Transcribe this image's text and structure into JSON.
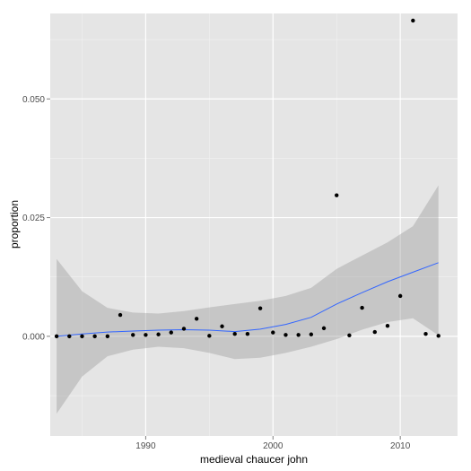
{
  "chart_data": {
    "type": "scatter",
    "title": "",
    "xlabel": "medieval chaucer john",
    "ylabel": "proportion",
    "xlim": [
      1982.5,
      2014.5
    ],
    "ylim": [
      -0.021,
      0.068
    ],
    "x_ticks": [
      1990,
      2000,
      2010
    ],
    "x_tick_labels": [
      "1990",
      "2000",
      "2010"
    ],
    "y_ticks": [
      0,
      0.025,
      0.05
    ],
    "y_tick_labels": [
      "0.000",
      "0.025",
      "0.050"
    ],
    "grid": true,
    "legend": "none",
    "points": {
      "x": [
        1983,
        1984,
        1985,
        1986,
        1987,
        1988,
        1989,
        1990,
        1991,
        1992,
        1993,
        1994,
        1995,
        1996,
        1997,
        1998,
        1999,
        2000,
        2001,
        2002,
        2003,
        2004,
        2005,
        2006,
        2007,
        2008,
        2009,
        2010,
        2011,
        2012,
        2013
      ],
      "y": [
        0.0,
        0.0,
        0.0,
        0.0,
        0.0,
        0.0045,
        0.0003,
        0.0003,
        0.0004,
        0.0008,
        0.0016,
        0.0037,
        0.0001,
        0.0021,
        0.0005,
        0.0005,
        0.0059,
        0.0008,
        0.0003,
        0.0003,
        0.0004,
        0.0017,
        0.0297,
        0.0002,
        0.006,
        0.0009,
        0.0022,
        0.0085,
        0.0665,
        0.0005,
        0.0001
      ]
    },
    "smooth": {
      "x": [
        1983,
        1985,
        1987,
        1989,
        1991,
        1993,
        1995,
        1997,
        1999,
        2001,
        2003,
        2005,
        2007,
        2009,
        2011,
        2013
      ],
      "y": [
        0.0,
        0.0005,
        0.0009,
        0.0011,
        0.0013,
        0.0014,
        0.0013,
        0.001,
        0.0015,
        0.0025,
        0.004,
        0.0068,
        0.0092,
        0.0115,
        0.0135,
        0.0155
      ],
      "lower": [
        -0.0163,
        -0.0085,
        -0.0042,
        -0.0028,
        -0.0022,
        -0.0025,
        -0.0035,
        -0.0048,
        -0.0045,
        -0.0035,
        -0.0022,
        -0.0006,
        0.0014,
        0.003,
        0.0038,
        0.0002
      ],
      "upper": [
        0.0163,
        0.0095,
        0.006,
        0.005,
        0.0048,
        0.0053,
        0.0061,
        0.0068,
        0.0075,
        0.0085,
        0.0102,
        0.0142,
        0.017,
        0.0198,
        0.0232,
        0.0318
      ]
    },
    "colors": {
      "panel": "#e5e5e5",
      "grid_major": "#ffffff",
      "grid_minor": "#f2f2f2",
      "point": "#000000",
      "smooth_line": "#3366ff",
      "ribbon": "#999999"
    }
  }
}
